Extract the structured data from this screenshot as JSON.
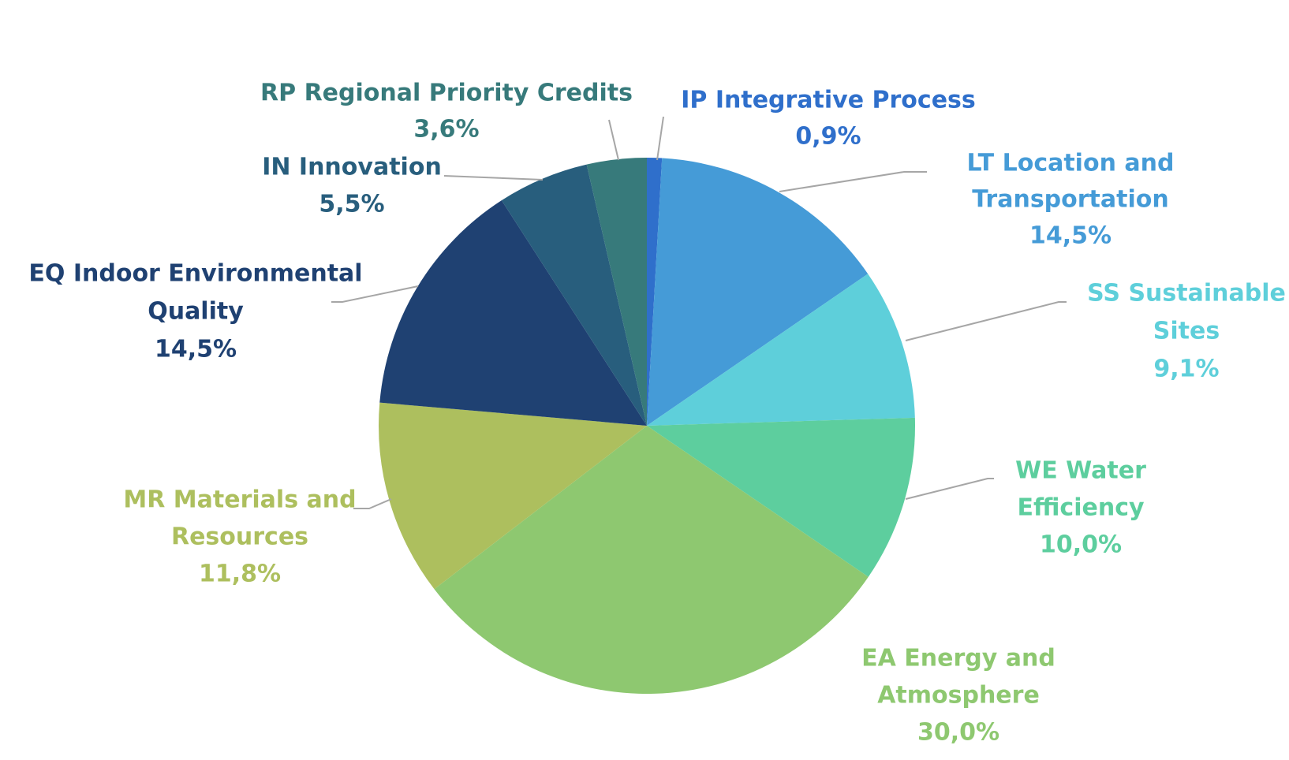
{
  "chart_data": {
    "type": "pie",
    "title": "",
    "start_angle_deg": 0,
    "direction": "clockwise",
    "slices": [
      {
        "code": "IP",
        "label_lines": [
          "IP Integrative Process"
        ],
        "value_label": "0,9%",
        "value": 0.9,
        "color": "#2F6FCB"
      },
      {
        "code": "LT",
        "label_lines": [
          "LT Location and",
          "Transportation"
        ],
        "value_label": "14,5%",
        "value": 14.5,
        "color": "#459BD7"
      },
      {
        "code": "SS",
        "label_lines": [
          "SS Sustainable",
          "Sites"
        ],
        "value_label": "9,1%",
        "value": 9.1,
        "color": "#5ECFDA"
      },
      {
        "code": "WE",
        "label_lines": [
          "WE Water",
          "Efficiency"
        ],
        "value_label": "10,0%",
        "value": 10.0,
        "color": "#5DCE9E"
      },
      {
        "code": "EA",
        "label_lines": [
          "EA Energy and",
          "Atmosphere"
        ],
        "value_label": "30,0%",
        "value": 30.0,
        "color": "#8EC870"
      },
      {
        "code": "MR",
        "label_lines": [
          "MR Materials and",
          "Resources"
        ],
        "value_label": "11,8%",
        "value": 11.8,
        "color": "#ADBF5E"
      },
      {
        "code": "EQ",
        "label_lines": [
          "EQ Indoor Environmental",
          "Quality"
        ],
        "value_label": "14,5%",
        "value": 14.5,
        "color": "#1F4172"
      },
      {
        "code": "IN",
        "label_lines": [
          "IN Innovation"
        ],
        "value_label": "5,5%",
        "value": 5.5,
        "color": "#285E7D"
      },
      {
        "code": "RP",
        "label_lines": [
          "RP Regional Priority Credits"
        ],
        "value_label": "3,6%",
        "value": 3.6,
        "color": "#377A7B"
      }
    ],
    "label_colors": {
      "IP": "#2F6FCB",
      "LT": "#459BD7",
      "SS": "#5ECFDA",
      "WE": "#5DCE9E",
      "EA": "#8EC870",
      "MR": "#ADBF5E",
      "EQ": "#1F4172",
      "IN": "#285E7D",
      "RP": "#377A7B"
    },
    "leader_line_color": "#A6A6A6"
  }
}
